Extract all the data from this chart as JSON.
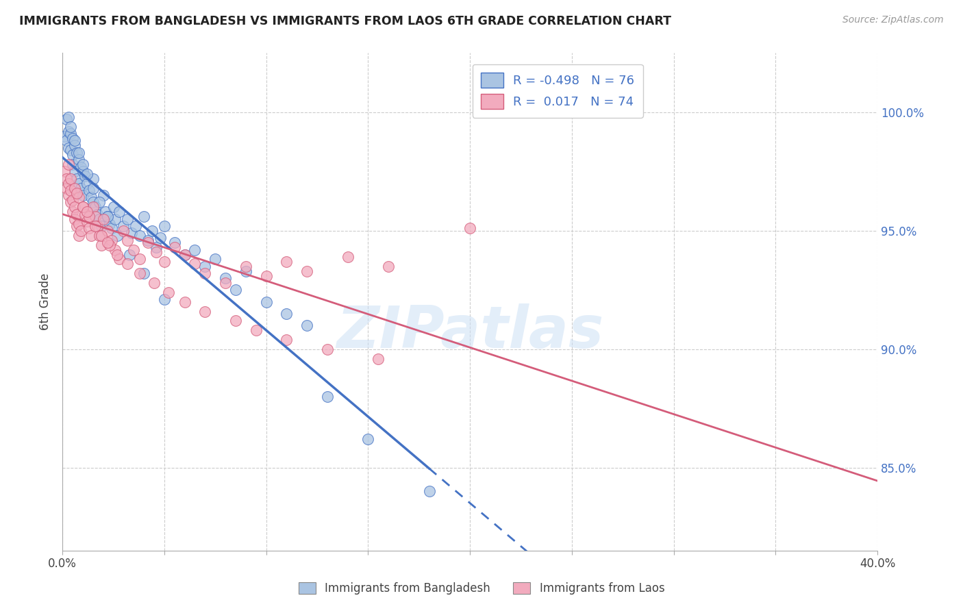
{
  "title": "IMMIGRANTS FROM BANGLADESH VS IMMIGRANTS FROM LAOS 6TH GRADE CORRELATION CHART",
  "source": "Source: ZipAtlas.com",
  "ylabel": "6th Grade",
  "xlim": [
    0.0,
    0.4
  ],
  "ylim": [
    0.815,
    1.025
  ],
  "r_bangladesh": -0.498,
  "n_bangladesh": 76,
  "r_laos": 0.017,
  "n_laos": 74,
  "color_bangladesh": "#aac4e2",
  "color_laos": "#f2abbe",
  "line_color_bangladesh": "#4472c4",
  "line_color_laos": "#d45c7a",
  "watermark": "ZIPatlas",
  "ytick_positions": [
    0.85,
    0.9,
    0.95,
    1.0
  ],
  "ytick_labels": [
    "85.0%",
    "90.0%",
    "95.0%",
    "100.0%"
  ],
  "xtick_positions": [
    0.0,
    0.05,
    0.1,
    0.15,
    0.2,
    0.25,
    0.3,
    0.35,
    0.4
  ],
  "xtick_labels": [
    "0.0%",
    "",
    "",
    "",
    "",
    "",
    "",
    "",
    "40.0%"
  ],
  "bangladesh_x": [
    0.001,
    0.002,
    0.002,
    0.003,
    0.003,
    0.004,
    0.004,
    0.005,
    0.005,
    0.005,
    0.006,
    0.006,
    0.007,
    0.007,
    0.008,
    0.008,
    0.009,
    0.009,
    0.01,
    0.01,
    0.011,
    0.012,
    0.013,
    0.014,
    0.015,
    0.015,
    0.016,
    0.017,
    0.018,
    0.019,
    0.02,
    0.021,
    0.022,
    0.023,
    0.024,
    0.025,
    0.026,
    0.028,
    0.03,
    0.032,
    0.034,
    0.036,
    0.038,
    0.04,
    0.042,
    0.044,
    0.046,
    0.048,
    0.05,
    0.055,
    0.06,
    0.065,
    0.07,
    0.075,
    0.08,
    0.085,
    0.09,
    0.1,
    0.11,
    0.12,
    0.003,
    0.004,
    0.006,
    0.008,
    0.01,
    0.012,
    0.015,
    0.018,
    0.022,
    0.027,
    0.033,
    0.04,
    0.05,
    0.13,
    0.15,
    0.18
  ],
  "bangladesh_y": [
    0.99,
    0.988,
    0.997,
    0.985,
    0.992,
    0.984,
    0.991,
    0.982,
    0.989,
    0.978,
    0.986,
    0.975,
    0.983,
    0.972,
    0.98,
    0.97,
    0.977,
    0.968,
    0.975,
    0.965,
    0.973,
    0.97,
    0.967,
    0.964,
    0.962,
    0.972,
    0.96,
    0.957,
    0.955,
    0.952,
    0.965,
    0.958,
    0.956,
    0.953,
    0.951,
    0.96,
    0.955,
    0.958,
    0.952,
    0.955,
    0.949,
    0.952,
    0.948,
    0.956,
    0.946,
    0.95,
    0.943,
    0.947,
    0.952,
    0.945,
    0.94,
    0.942,
    0.935,
    0.938,
    0.93,
    0.925,
    0.933,
    0.92,
    0.915,
    0.91,
    0.998,
    0.994,
    0.988,
    0.983,
    0.978,
    0.974,
    0.968,
    0.962,
    0.956,
    0.948,
    0.94,
    0.932,
    0.921,
    0.88,
    0.862,
    0.84
  ],
  "laos_x": [
    0.001,
    0.002,
    0.002,
    0.003,
    0.003,
    0.004,
    0.004,
    0.005,
    0.005,
    0.006,
    0.006,
    0.007,
    0.007,
    0.008,
    0.008,
    0.009,
    0.01,
    0.011,
    0.012,
    0.013,
    0.014,
    0.015,
    0.016,
    0.017,
    0.018,
    0.019,
    0.02,
    0.022,
    0.024,
    0.026,
    0.028,
    0.03,
    0.032,
    0.035,
    0.038,
    0.042,
    0.046,
    0.05,
    0.055,
    0.06,
    0.065,
    0.07,
    0.08,
    0.09,
    0.1,
    0.11,
    0.12,
    0.14,
    0.16,
    0.2,
    0.004,
    0.006,
    0.008,
    0.01,
    0.013,
    0.016,
    0.019,
    0.023,
    0.027,
    0.032,
    0.038,
    0.045,
    0.052,
    0.06,
    0.07,
    0.085,
    0.095,
    0.11,
    0.13,
    0.155,
    0.003,
    0.007,
    0.012,
    0.022
  ],
  "laos_y": [
    0.975,
    0.972,
    0.968,
    0.97,
    0.965,
    0.967,
    0.962,
    0.963,
    0.958,
    0.96,
    0.955,
    0.957,
    0.952,
    0.953,
    0.948,
    0.95,
    0.96,
    0.957,
    0.954,
    0.951,
    0.948,
    0.96,
    0.956,
    0.952,
    0.948,
    0.944,
    0.955,
    0.95,
    0.946,
    0.942,
    0.938,
    0.95,
    0.946,
    0.942,
    0.938,
    0.945,
    0.941,
    0.937,
    0.943,
    0.94,
    0.936,
    0.932,
    0.928,
    0.935,
    0.931,
    0.937,
    0.933,
    0.939,
    0.935,
    0.951,
    0.972,
    0.968,
    0.964,
    0.96,
    0.956,
    0.952,
    0.948,
    0.944,
    0.94,
    0.936,
    0.932,
    0.928,
    0.924,
    0.92,
    0.916,
    0.912,
    0.908,
    0.904,
    0.9,
    0.896,
    0.978,
    0.966,
    0.958,
    0.945
  ]
}
